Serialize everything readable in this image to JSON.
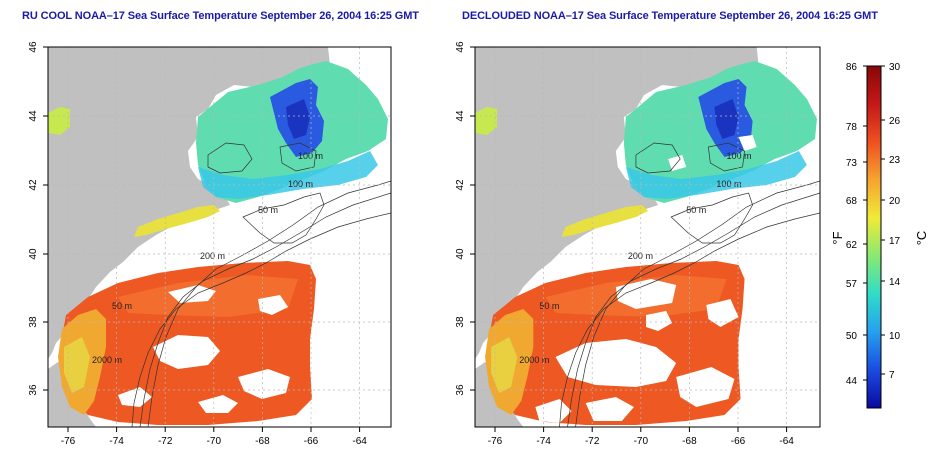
{
  "panels": [
    {
      "title": "RU COOL NOAA–17 Sea Surface Temperature September 26, 2004 16:25 GMT",
      "x_ticks": [
        "-76",
        "-74",
        "-72",
        "-70",
        "-68",
        "-66",
        "-64"
      ],
      "y_ticks": [
        "36",
        "38",
        "40",
        "42",
        "44",
        "46"
      ],
      "contour_labels": [
        "100 m",
        "100 m",
        "50 m",
        "200 m",
        "50 m",
        "2000 m"
      ]
    },
    {
      "title": "DECLOUDED NOAA–17 Sea Surface Temperature September 26, 2004 16:25 GMT",
      "x_ticks": [
        "-76",
        "-74",
        "-72",
        "-70",
        "-68",
        "-66",
        "-64"
      ],
      "y_ticks": [
        "36",
        "38",
        "40",
        "42",
        "44",
        "46"
      ],
      "contour_labels": [
        "100 m",
        "100 m",
        "50 m",
        "200 m",
        "50 m",
        "2000 m"
      ]
    }
  ],
  "colorbar": {
    "f_label": "°F",
    "c_label": "°C",
    "f_ticks": [
      "86",
      "78",
      "73",
      "68",
      "62",
      "57",
      "50",
      "44"
    ],
    "c_ticks": [
      "30",
      "26",
      "23",
      "20",
      "17",
      "14",
      "10",
      "7"
    ],
    "colors": [
      "#0a0aa0",
      "#1a4be0",
      "#25a0ee",
      "#30dcc8",
      "#88ea70",
      "#f0ea38",
      "#f6a430",
      "#ee5020",
      "#c41818",
      "#880808"
    ]
  },
  "colors": {
    "land": "#c0c0c0",
    "title": "#1a1aa8",
    "grid": "#b8b8b8"
  }
}
